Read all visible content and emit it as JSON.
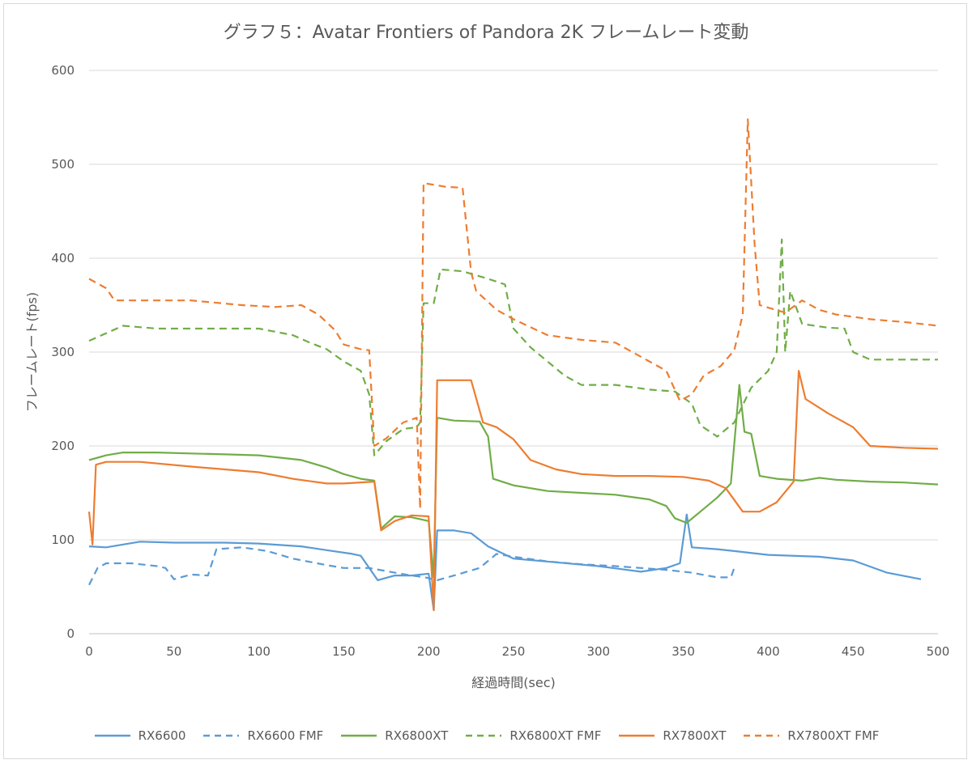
{
  "chart_data": {
    "type": "line",
    "title": "グラフ５：Avatar Frontiers of Pandora 2K フレームレート変動",
    "xlabel": "経過時間(sec)",
    "ylabel": "フレームレート(fps)",
    "xlim": [
      0,
      500
    ],
    "ylim": [
      0,
      600
    ],
    "xticks": [
      0,
      50,
      100,
      150,
      200,
      250,
      300,
      350,
      400,
      450,
      500
    ],
    "yticks": [
      0,
      100,
      200,
      300,
      400,
      500,
      600
    ],
    "grid": "horizontal",
    "legend_position": "bottom",
    "series": [
      {
        "name": "RX6600",
        "color": "#5b9bd5",
        "dash": false,
        "points": [
          [
            0,
            93
          ],
          [
            10,
            92
          ],
          [
            20,
            95
          ],
          [
            30,
            98
          ],
          [
            50,
            97
          ],
          [
            80,
            97
          ],
          [
            100,
            96
          ],
          [
            125,
            93
          ],
          [
            140,
            89
          ],
          [
            155,
            85
          ],
          [
            160,
            83
          ],
          [
            170,
            57
          ],
          [
            180,
            62
          ],
          [
            190,
            62
          ],
          [
            200,
            64
          ],
          [
            203,
            25
          ],
          [
            205,
            110
          ],
          [
            215,
            110
          ],
          [
            225,
            107
          ],
          [
            235,
            93
          ],
          [
            250,
            80
          ],
          [
            275,
            76
          ],
          [
            300,
            72
          ],
          [
            325,
            66
          ],
          [
            340,
            70
          ],
          [
            348,
            75
          ],
          [
            352,
            127
          ],
          [
            355,
            92
          ],
          [
            370,
            90
          ],
          [
            380,
            88
          ],
          [
            400,
            84
          ],
          [
            430,
            82
          ],
          [
            450,
            78
          ],
          [
            470,
            65
          ],
          [
            490,
            58
          ]
        ]
      },
      {
        "name": "RX6600 FMF",
        "color": "#5b9bd5",
        "dash": true,
        "points": [
          [
            0,
            52
          ],
          [
            5,
            70
          ],
          [
            10,
            75
          ],
          [
            25,
            75
          ],
          [
            40,
            72
          ],
          [
            45,
            70
          ],
          [
            50,
            58
          ],
          [
            60,
            63
          ],
          [
            70,
            62
          ],
          [
            75,
            90
          ],
          [
            90,
            92
          ],
          [
            105,
            88
          ],
          [
            120,
            80
          ],
          [
            140,
            73
          ],
          [
            150,
            70
          ],
          [
            165,
            70
          ],
          [
            180,
            65
          ],
          [
            190,
            62
          ],
          [
            198,
            60
          ],
          [
            205,
            57
          ],
          [
            215,
            62
          ],
          [
            230,
            70
          ],
          [
            240,
            85
          ],
          [
            250,
            82
          ],
          [
            270,
            77
          ],
          [
            290,
            74
          ],
          [
            310,
            72
          ],
          [
            325,
            70
          ],
          [
            340,
            68
          ],
          [
            355,
            65
          ],
          [
            370,
            60
          ],
          [
            378,
            60
          ],
          [
            380,
            70
          ]
        ]
      },
      {
        "name": "RX6800XT",
        "color": "#70ad47",
        "dash": false,
        "points": [
          [
            0,
            185
          ],
          [
            10,
            190
          ],
          [
            20,
            193
          ],
          [
            40,
            193
          ],
          [
            60,
            192
          ],
          [
            80,
            191
          ],
          [
            100,
            190
          ],
          [
            125,
            185
          ],
          [
            140,
            177
          ],
          [
            150,
            170
          ],
          [
            160,
            165
          ],
          [
            168,
            163
          ],
          [
            172,
            112
          ],
          [
            180,
            125
          ],
          [
            190,
            124
          ],
          [
            200,
            120
          ],
          [
            203,
            60
          ],
          [
            205,
            230
          ],
          [
            215,
            227
          ],
          [
            230,
            226
          ],
          [
            235,
            210
          ],
          [
            238,
            165
          ],
          [
            250,
            158
          ],
          [
            270,
            152
          ],
          [
            290,
            150
          ],
          [
            310,
            148
          ],
          [
            330,
            143
          ],
          [
            340,
            136
          ],
          [
            345,
            123
          ],
          [
            352,
            118
          ],
          [
            360,
            130
          ],
          [
            370,
            145
          ],
          [
            378,
            160
          ],
          [
            383,
            265
          ],
          [
            386,
            215
          ],
          [
            390,
            213
          ],
          [
            395,
            168
          ],
          [
            405,
            165
          ],
          [
            420,
            163
          ],
          [
            430,
            166
          ],
          [
            440,
            164
          ],
          [
            460,
            162
          ],
          [
            480,
            161
          ],
          [
            500,
            159
          ]
        ]
      },
      {
        "name": "RX6800XT FMF",
        "color": "#70ad47",
        "dash": true,
        "points": [
          [
            0,
            312
          ],
          [
            10,
            320
          ],
          [
            20,
            328
          ],
          [
            40,
            325
          ],
          [
            60,
            325
          ],
          [
            80,
            325
          ],
          [
            100,
            325
          ],
          [
            120,
            318
          ],
          [
            130,
            310
          ],
          [
            140,
            303
          ],
          [
            150,
            290
          ],
          [
            160,
            280
          ],
          [
            165,
            255
          ],
          [
            168,
            190
          ],
          [
            175,
            205
          ],
          [
            185,
            218
          ],
          [
            193,
            220
          ],
          [
            195,
            225
          ],
          [
            197,
            352
          ],
          [
            203,
            352
          ],
          [
            207,
            388
          ],
          [
            220,
            386
          ],
          [
            235,
            378
          ],
          [
            245,
            372
          ],
          [
            250,
            325
          ],
          [
            260,
            305
          ],
          [
            270,
            290
          ],
          [
            280,
            275
          ],
          [
            290,
            265
          ],
          [
            310,
            265
          ],
          [
            330,
            260
          ],
          [
            345,
            258
          ],
          [
            355,
            245
          ],
          [
            360,
            222
          ],
          [
            370,
            210
          ],
          [
            380,
            225
          ],
          [
            390,
            262
          ],
          [
            400,
            280
          ],
          [
            405,
            300
          ],
          [
            408,
            420
          ],
          [
            410,
            300
          ],
          [
            413,
            365
          ],
          [
            420,
            330
          ],
          [
            435,
            326
          ],
          [
            445,
            325
          ],
          [
            450,
            300
          ],
          [
            460,
            292
          ],
          [
            480,
            292
          ],
          [
            500,
            292
          ]
        ]
      },
      {
        "name": "RX7800XT",
        "color": "#ed7d31",
        "dash": false,
        "points": [
          [
            0,
            130
          ],
          [
            2,
            95
          ],
          [
            4,
            180
          ],
          [
            10,
            183
          ],
          [
            30,
            183
          ],
          [
            60,
            178
          ],
          [
            80,
            175
          ],
          [
            100,
            172
          ],
          [
            120,
            165
          ],
          [
            140,
            160
          ],
          [
            150,
            160
          ],
          [
            168,
            162
          ],
          [
            172,
            110
          ],
          [
            180,
            120
          ],
          [
            190,
            126
          ],
          [
            200,
            125
          ],
          [
            203,
            25
          ],
          [
            205,
            270
          ],
          [
            215,
            270
          ],
          [
            225,
            270
          ],
          [
            232,
            225
          ],
          [
            240,
            220
          ],
          [
            250,
            207
          ],
          [
            260,
            185
          ],
          [
            275,
            175
          ],
          [
            290,
            170
          ],
          [
            310,
            168
          ],
          [
            330,
            168
          ],
          [
            350,
            167
          ],
          [
            365,
            163
          ],
          [
            375,
            155
          ],
          [
            385,
            130
          ],
          [
            395,
            130
          ],
          [
            405,
            140
          ],
          [
            415,
            162
          ],
          [
            418,
            280
          ],
          [
            422,
            250
          ],
          [
            435,
            235
          ],
          [
            450,
            220
          ],
          [
            460,
            200
          ],
          [
            480,
            198
          ],
          [
            500,
            197
          ]
        ]
      },
      {
        "name": "RX7800XT FMF",
        "color": "#ed7d31",
        "dash": true,
        "points": [
          [
            0,
            378
          ],
          [
            10,
            368
          ],
          [
            15,
            355
          ],
          [
            40,
            355
          ],
          [
            60,
            355
          ],
          [
            90,
            350
          ],
          [
            110,
            348
          ],
          [
            125,
            350
          ],
          [
            135,
            340
          ],
          [
            145,
            323
          ],
          [
            150,
            308
          ],
          [
            160,
            303
          ],
          [
            165,
            302
          ],
          [
            168,
            200
          ],
          [
            175,
            208
          ],
          [
            185,
            225
          ],
          [
            193,
            230
          ],
          [
            195,
            133
          ],
          [
            197,
            480
          ],
          [
            210,
            476
          ],
          [
            220,
            475
          ],
          [
            225,
            385
          ],
          [
            228,
            365
          ],
          [
            240,
            345
          ],
          [
            250,
            335
          ],
          [
            270,
            318
          ],
          [
            290,
            313
          ],
          [
            310,
            310
          ],
          [
            320,
            300
          ],
          [
            330,
            290
          ],
          [
            340,
            280
          ],
          [
            348,
            248
          ],
          [
            355,
            255
          ],
          [
            362,
            275
          ],
          [
            372,
            285
          ],
          [
            380,
            302
          ],
          [
            385,
            340
          ],
          [
            388,
            548
          ],
          [
            392,
            415
          ],
          [
            395,
            350
          ],
          [
            410,
            342
          ],
          [
            420,
            355
          ],
          [
            430,
            345
          ],
          [
            440,
            340
          ],
          [
            460,
            335
          ],
          [
            480,
            332
          ],
          [
            500,
            328
          ]
        ]
      }
    ]
  }
}
